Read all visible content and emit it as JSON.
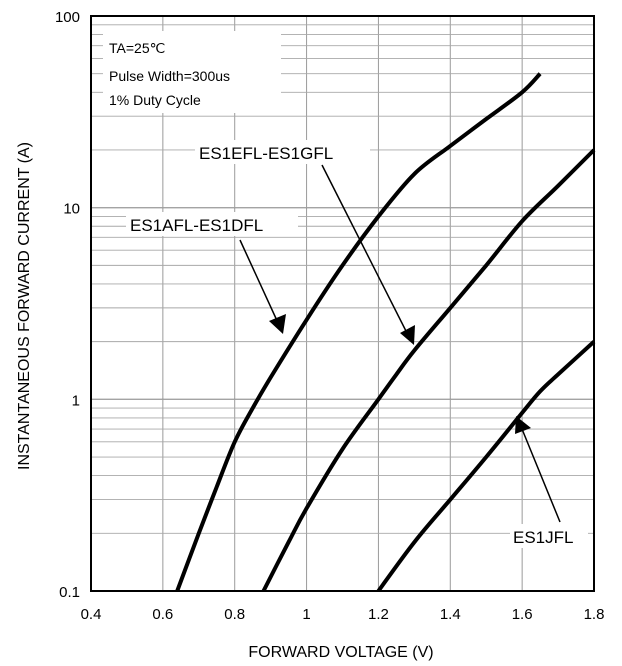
{
  "chart_data": {
    "type": "line",
    "title": "",
    "xlabel": "FORWARD VOLTAGE (V)",
    "ylabel": "INSTANTANEOUS FORWARD CURRENT (A)",
    "xlim": [
      0.4,
      1.8
    ],
    "ylim": [
      0.1,
      100
    ],
    "yscale": "log",
    "grid": true,
    "x_ticks": [
      0.4,
      0.6,
      0.8,
      1.0,
      1.2,
      1.4,
      1.6,
      1.8
    ],
    "x_tick_labels": [
      "0.4",
      "0.6",
      "0.8",
      "1",
      "1.2",
      "1.4",
      "1.6",
      "1.8"
    ],
    "y_ticks": [
      0.1,
      1,
      10,
      100
    ],
    "y_tick_labels": [
      "0.1",
      "1",
      "10",
      "100"
    ],
    "annotation_lines": [
      "TA=25℃",
      "Pulse Width=300us",
      "1% Duty Cycle"
    ],
    "series": [
      {
        "name": "ES1AFL-ES1DFL",
        "x": [
          0.64,
          0.7,
          0.75,
          0.8,
          0.85,
          0.9,
          1.0,
          1.1,
          1.2,
          1.3,
          1.4,
          1.5,
          1.6,
          1.65
        ],
        "y": [
          0.1,
          0.2,
          0.35,
          0.6,
          0.9,
          1.3,
          2.6,
          5.0,
          9.0,
          15.0,
          21.0,
          29.0,
          40.0,
          50.0
        ]
      },
      {
        "name": "ES1EFL-ES1GFL",
        "x": [
          0.88,
          0.95,
          1.0,
          1.1,
          1.2,
          1.25,
          1.3,
          1.4,
          1.5,
          1.6,
          1.7,
          1.8
        ],
        "y": [
          0.1,
          0.18,
          0.27,
          0.55,
          1.0,
          1.35,
          1.8,
          3.0,
          5.0,
          8.5,
          13.0,
          20.0
        ]
      },
      {
        "name": "ES1JFL",
        "x": [
          1.2,
          1.3,
          1.4,
          1.5,
          1.6,
          1.65,
          1.7,
          1.8
        ],
        "y": [
          0.1,
          0.18,
          0.3,
          0.5,
          0.85,
          1.1,
          1.35,
          2.0
        ]
      }
    ]
  }
}
